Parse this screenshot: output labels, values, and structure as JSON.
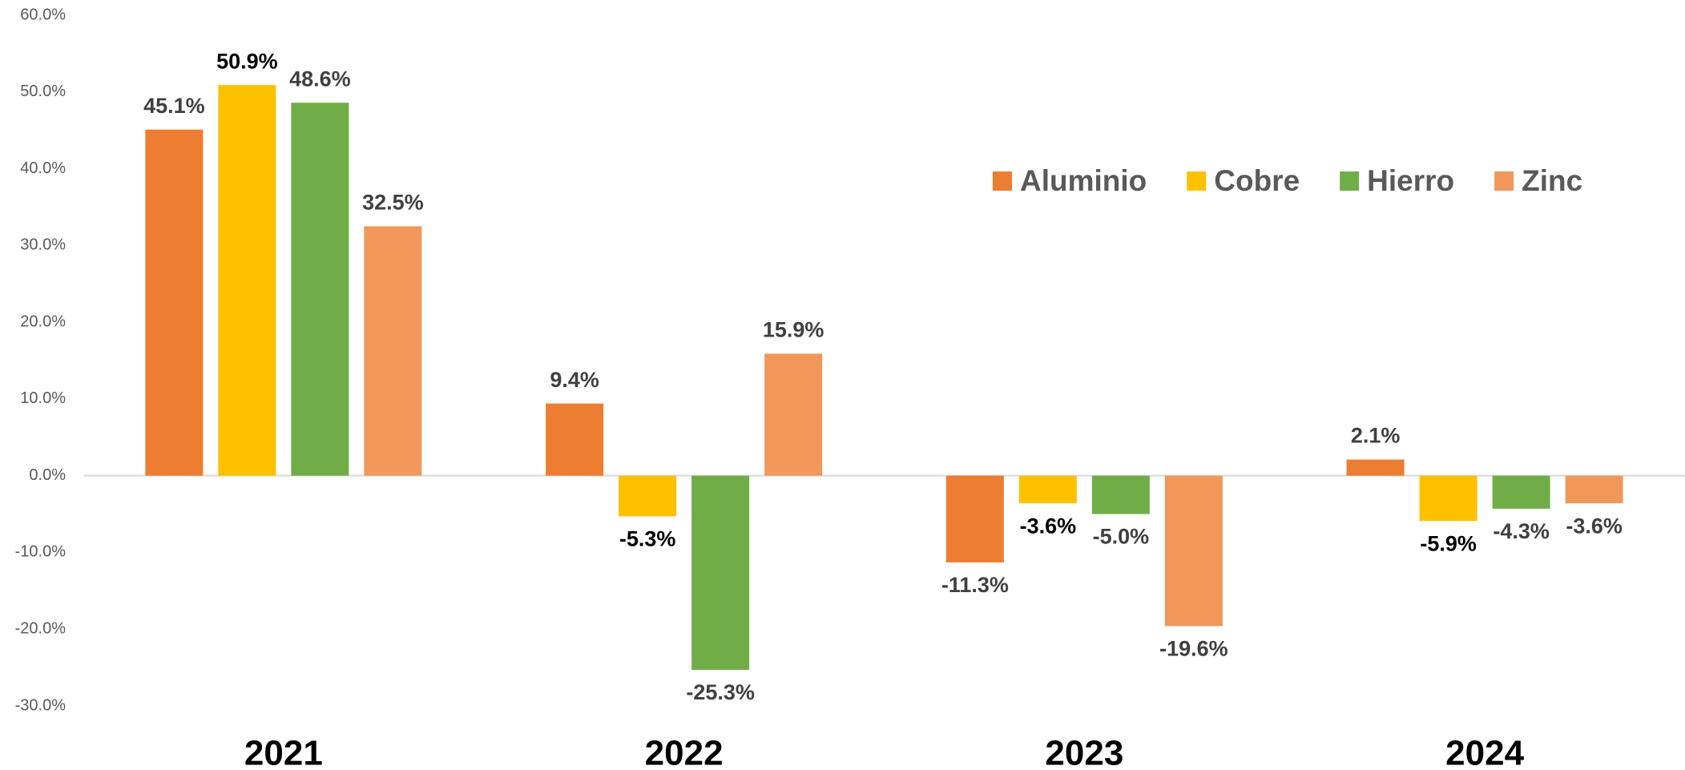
{
  "chart_data": {
    "type": "bar",
    "categories": [
      "2021",
      "2022",
      "2023",
      "2024"
    ],
    "series": [
      {
        "name": "Aluminio",
        "color": "#ED7D31",
        "label_color": "#404040",
        "values": [
          45.1,
          9.4,
          -11.3,
          2.1
        ],
        "value_labels": [
          "45.1%",
          "9.4%",
          "-11.3%",
          "2.1%"
        ]
      },
      {
        "name": "Cobre",
        "color": "#FFC000",
        "label_color": "#000000",
        "values": [
          50.9,
          -5.3,
          -3.6,
          -5.9
        ],
        "value_labels": [
          "50.9%",
          "-5.3%",
          "-3.6%",
          "-5.9%"
        ]
      },
      {
        "name": "Hierro",
        "color": "#70AD47",
        "label_color": "#404040",
        "values": [
          48.6,
          -25.3,
          -5.0,
          -4.3
        ],
        "value_labels": [
          "48.6%",
          "-25.3%",
          "-5.0%",
          "-4.3%"
        ]
      },
      {
        "name": "Zinc",
        "color": "#F1975A",
        "label_color": "#404040",
        "values": [
          32.5,
          15.9,
          -19.6,
          -3.6
        ],
        "value_labels": [
          "32.5%",
          "15.9%",
          "-19.6%",
          "-3.6%"
        ]
      }
    ],
    "ylim": [
      -30,
      60
    ],
    "yticks": [
      {
        "value": -30,
        "label": "-30.0%"
      },
      {
        "value": -20,
        "label": "-20.0%"
      },
      {
        "value": -10,
        "label": "-10.0%"
      },
      {
        "value": 0,
        "label": "0.0%"
      },
      {
        "value": 10,
        "label": "10.0%"
      },
      {
        "value": 20,
        "label": "20.0%"
      },
      {
        "value": 30,
        "label": "30.0%"
      },
      {
        "value": 40,
        "label": "40.0%"
      },
      {
        "value": 50,
        "label": "50.0%"
      },
      {
        "value": 60,
        "label": "60.0%"
      }
    ],
    "grid": false,
    "legend": "top-right"
  }
}
